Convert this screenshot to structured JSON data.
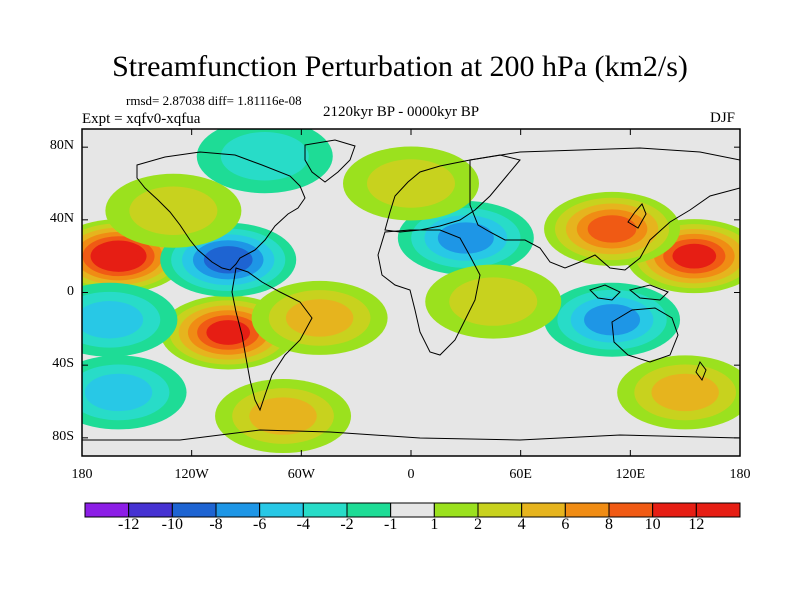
{
  "title": "Streamfunction Perturbation at 200 hPa (km2/s)",
  "stats": "rmsd= 2.87038 diff= 1.81116e-08",
  "expt": "Expt = xqfv0-xqfua",
  "period": "2120kyr BP - 0000kyr BP",
  "season": "DJF",
  "map": {
    "projection": "cylindrical equidistant",
    "lon_range": [
      -180,
      180
    ],
    "lat_range": [
      -90,
      90
    ],
    "lat_ticks": [
      {
        "label": "80N",
        "value": 80
      },
      {
        "label": "40N",
        "value": 40
      },
      {
        "label": "0",
        "value": 0
      },
      {
        "label": "40S",
        "value": -40
      },
      {
        "label": "80S",
        "value": -80
      }
    ],
    "lon_ticks": [
      {
        "label": "180",
        "value": -180
      },
      {
        "label": "120W",
        "value": -120
      },
      {
        "label": "60W",
        "value": -60
      },
      {
        "label": "0",
        "value": 0
      },
      {
        "label": "60E",
        "value": 60
      },
      {
        "label": "120E",
        "value": 120
      },
      {
        "label": "180",
        "value": 180
      }
    ],
    "background_color": "#e6e6e6",
    "coastline_color": "#000000"
  },
  "colorbar": {
    "labels": [
      "-12",
      "-10",
      "-8",
      "-6",
      "-4",
      "-2",
      "-1",
      "1",
      "2",
      "4",
      "6",
      "8",
      "10",
      "12"
    ],
    "colors": [
      "#8c1ee6",
      "#4632d2",
      "#1e64d2",
      "#1e96e6",
      "#28c8e6",
      "#28dcc8",
      "#1edc96",
      "#e6e6e6",
      "#9be11e",
      "#c8d21e",
      "#e6b41e",
      "#f08c14",
      "#f05a14",
      "#e61e14",
      "#e61e14"
    ]
  },
  "anomalies": [
    {
      "lon": -160,
      "lat": 20,
      "value": 12
    },
    {
      "lon": -100,
      "lat": -22,
      "value": 10
    },
    {
      "lon": -50,
      "lat": -14,
      "value": 4
    },
    {
      "lon": 155,
      "lat": 20,
      "value": 10
    },
    {
      "lon": 110,
      "lat": 35,
      "value": 8
    },
    {
      "lon": -100,
      "lat": 18,
      "value": -8
    },
    {
      "lon": 30,
      "lat": 30,
      "value": -6
    },
    {
      "lon": 110,
      "lat": -15,
      "value": -6
    },
    {
      "lon": -165,
      "lat": -15,
      "value": -4
    },
    {
      "lon": -70,
      "lat": -68,
      "value": 4
    },
    {
      "lon": 45,
      "lat": -5,
      "value": 2
    },
    {
      "lon": -80,
      "lat": 75,
      "value": -2
    },
    {
      "lon": 0,
      "lat": 60,
      "value": 2
    },
    {
      "lon": -130,
      "lat": 45,
      "value": 2
    },
    {
      "lon": -160,
      "lat": -55,
      "value": -4
    },
    {
      "lon": 150,
      "lat": -55,
      "value": 4
    }
  ]
}
